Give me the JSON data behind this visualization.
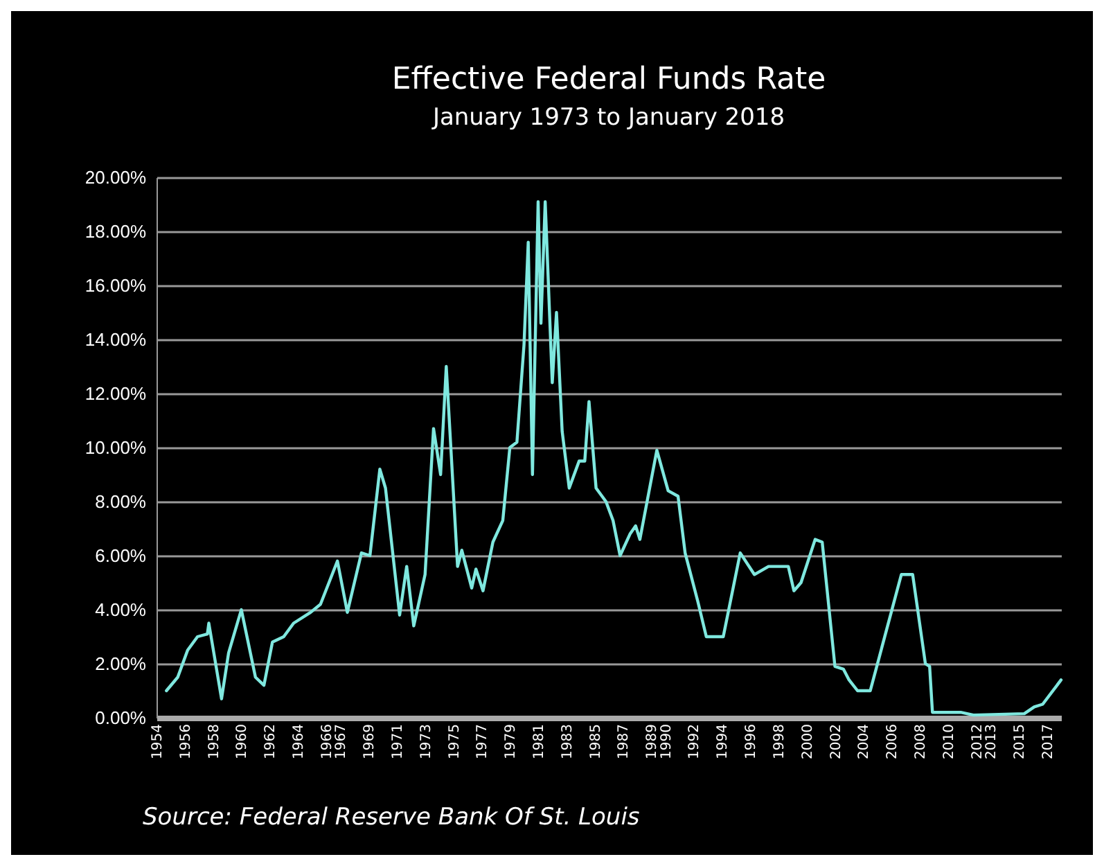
{
  "chart_data": {
    "type": "line",
    "title": "Effective Federal Funds Rate",
    "subtitle": "January 1973 to January 2018",
    "annotations": [
      "Source:  Federal Reserve Bank Of St. Louis"
    ],
    "x": [
      1954.7,
      1955.5,
      1956.2,
      1956.9,
      1957.6,
      1957.7,
      1958.6,
      1959.1,
      1960.0,
      1961.0,
      1961.6,
      1962.2,
      1963.0,
      1963.7,
      1964.9,
      1965.6,
      1966.8,
      1967.5,
      1968.5,
      1969.1,
      1969.8,
      1970.2,
      1971.2,
      1971.7,
      1972.2,
      1973.0,
      1973.6,
      1974.1,
      1974.5,
      1975.3,
      1975.6,
      1976.3,
      1976.6,
      1977.1,
      1977.8,
      1978.5,
      1979.0,
      1979.5,
      1980.0,
      1980.3,
      1980.6,
      1981.0,
      1981.2,
      1981.5,
      1982.0,
      1982.3,
      1982.7,
      1983.2,
      1983.9,
      1984.3,
      1984.6,
      1985.1,
      1985.8,
      1986.3,
      1986.8,
      1987.5,
      1987.9,
      1988.2,
      1989.4,
      1990.2,
      1990.9,
      1991.4,
      1992.3,
      1992.9,
      1994.1,
      1995.3,
      1996.3,
      1997.3,
      1998.7,
      1999.1,
      1999.6,
      2000.6,
      2001.1,
      2002.0,
      2002.6,
      2003.0,
      2003.6,
      2004.5,
      2006.7,
      2007.5,
      2008.4,
      2008.7,
      2008.9,
      2010.9,
      2011.8,
      2015.4,
      2016.1,
      2016.7,
      2018.0
    ],
    "series": [
      {
        "color": "#7fe8df",
        "values": [
          1.0,
          1.5,
          2.5,
          3.0,
          3.1,
          3.5,
          0.7,
          2.4,
          4.0,
          1.5,
          1.2,
          2.8,
          3.0,
          3.5,
          3.9,
          4.2,
          5.8,
          3.9,
          6.1,
          6.0,
          9.2,
          8.5,
          3.8,
          5.6,
          3.4,
          5.3,
          10.7,
          9.0,
          13.0,
          5.6,
          6.2,
          4.8,
          5.5,
          4.7,
          6.5,
          7.3,
          10.0,
          10.2,
          13.8,
          17.6,
          9.0,
          19.1,
          14.6,
          19.1,
          12.4,
          15.0,
          10.6,
          8.5,
          9.5,
          9.5,
          11.7,
          8.5,
          8.0,
          7.3,
          6.0,
          6.8,
          7.1,
          6.6,
          9.9,
          8.4,
          8.2,
          6.1,
          4.3,
          3.0,
          3.0,
          6.1,
          5.3,
          5.6,
          5.6,
          4.7,
          5.0,
          6.6,
          6.5,
          1.9,
          1.8,
          1.4,
          1.0,
          1.0,
          5.3,
          5.3,
          2.0,
          1.9,
          0.2,
          0.2,
          0.1,
          0.15,
          0.4,
          0.5,
          1.4
        ]
      }
    ],
    "xlim": [
      1954,
      2018
    ],
    "xticks": [
      1954,
      1956,
      1958,
      1960,
      1962,
      1964,
      1966,
      1967,
      1969,
      1971,
      1973,
      1975,
      1977,
      1979,
      1981,
      1983,
      1985,
      1987,
      1989,
      1990,
      1992,
      1994,
      1996,
      1998,
      2000,
      2002,
      2004,
      2006,
      2008,
      2010,
      2012,
      2013,
      2015,
      2017
    ],
    "ylim": [
      0,
      20
    ],
    "yticks": [
      {
        "value": 0,
        "label": "0.00%"
      },
      {
        "value": 2,
        "label": "2.00%"
      },
      {
        "value": 4,
        "label": "4.00%"
      },
      {
        "value": 6,
        "label": "6.00%"
      },
      {
        "value": 8,
        "label": "8.00%"
      },
      {
        "value": 10,
        "label": "10.00%"
      },
      {
        "value": 12,
        "label": "12.00%"
      },
      {
        "value": 14,
        "label": "14.00%"
      },
      {
        "value": 16,
        "label": "16.00%"
      },
      {
        "value": 18,
        "label": "18.00%"
      },
      {
        "value": 20,
        "label": "20.00%"
      }
    ],
    "grid": "y",
    "line_style": "solid"
  }
}
